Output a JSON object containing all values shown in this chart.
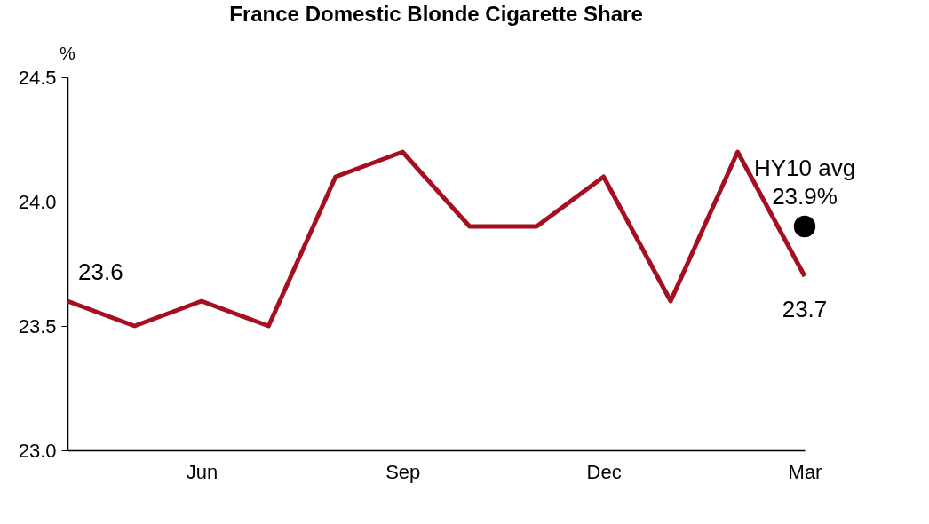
{
  "chart_data": {
    "type": "line",
    "title": "France Domestic Blonde Cigarette Share",
    "ylabel": "%",
    "categories": [
      null,
      null,
      "Jun",
      null,
      null,
      "Sep",
      null,
      null,
      "Dec",
      null,
      null,
      "Mar"
    ],
    "series": [
      {
        "color": "#a50f22",
        "values": [
          23.6,
          23.5,
          23.6,
          23.5,
          24.1,
          24.2,
          23.9,
          23.9,
          24.1,
          23.6,
          24.2,
          23.7
        ],
        "value_labels": [
          "23.6",
          null,
          null,
          null,
          null,
          null,
          null,
          null,
          null,
          null,
          null,
          "23.7"
        ]
      },
      {
        "type": "scatter",
        "name": "HY10 avg",
        "color": "#000000",
        "x": [
          "Mar"
        ],
        "values": [
          23.9
        ],
        "value_labels": [
          "23.9%"
        ]
      }
    ],
    "ylim": [
      23.0,
      24.5
    ],
    "yticks": [
      {
        "value": 23.0,
        "label": "23.0"
      },
      {
        "value": 23.5,
        "label": "23.5"
      },
      {
        "value": 24.0,
        "label": "24.0"
      },
      {
        "value": 24.5,
        "label": "24.5"
      }
    ],
    "grid": false,
    "legend": false,
    "line_style": "solid"
  }
}
